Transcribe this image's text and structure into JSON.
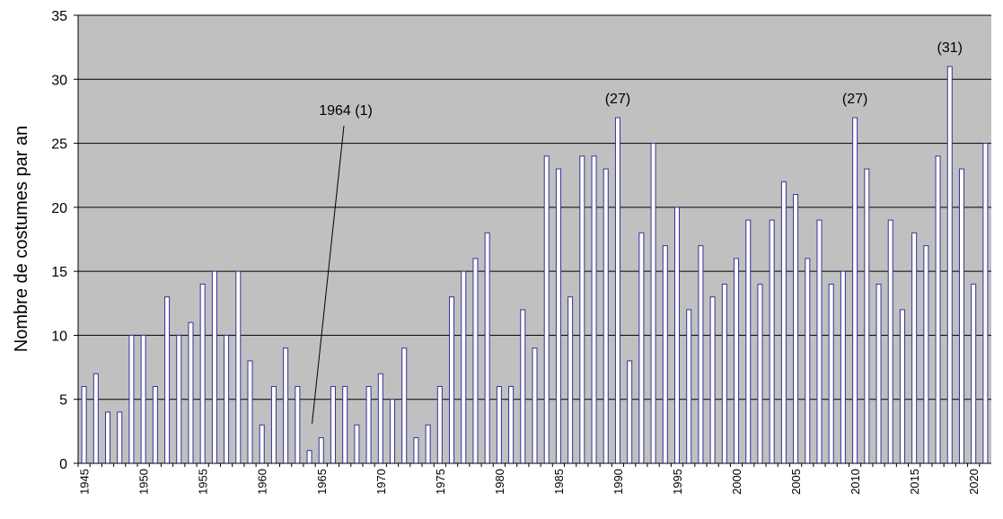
{
  "chart_data": {
    "type": "bar",
    "ylabel": "Nombre de costumes par an",
    "ylim": [
      0,
      35
    ],
    "yticks": [
      0,
      5,
      10,
      15,
      20,
      25,
      30,
      35
    ],
    "grid": true,
    "x": [
      1945,
      1946,
      1947,
      1948,
      1949,
      1950,
      1951,
      1952,
      1953,
      1954,
      1955,
      1956,
      1957,
      1958,
      1959,
      1960,
      1961,
      1962,
      1963,
      1964,
      1965,
      1966,
      1967,
      1968,
      1969,
      1970,
      1971,
      1972,
      1973,
      1974,
      1975,
      1976,
      1977,
      1978,
      1979,
      1980,
      1981,
      1982,
      1983,
      1984,
      1985,
      1986,
      1987,
      1988,
      1989,
      1990,
      1991,
      1992,
      1993,
      1994,
      1995,
      1996,
      1997,
      1998,
      1999,
      2000,
      2001,
      2002,
      2003,
      2004,
      2005,
      2006,
      2007,
      2008,
      2009,
      2010,
      2011,
      2012,
      2013,
      2014,
      2015,
      2016,
      2017,
      2018,
      2019,
      2020,
      2021
    ],
    "values": [
      6,
      7,
      4,
      4,
      10,
      10,
      6,
      13,
      10,
      11,
      14,
      15,
      10,
      15,
      8,
      3,
      6,
      9,
      6,
      1,
      2,
      6,
      6,
      3,
      6,
      7,
      5,
      9,
      2,
      3,
      6,
      13,
      15,
      16,
      18,
      6,
      6,
      12,
      9,
      24,
      23,
      13,
      24,
      24,
      23,
      27,
      8,
      18,
      25,
      17,
      20,
      12,
      17,
      13,
      14,
      16,
      19,
      14,
      19,
      22,
      21,
      16,
      19,
      14,
      15,
      27,
      23,
      14,
      19,
      12,
      18,
      17,
      24,
      31,
      23,
      14,
      25
    ],
    "xtick_labels": [
      "1945",
      "1950",
      "1955",
      "1960",
      "1965",
      "1970",
      "1975",
      "1980",
      "1985",
      "1990",
      "1995",
      "2000",
      "2005",
      "2010",
      "2015",
      "2020"
    ],
    "annotations": [
      {
        "year": 1964,
        "value": 1,
        "text": "1964 (1)"
      },
      {
        "year": 1990,
        "value": 27,
        "text": "(27)"
      },
      {
        "year": 2010,
        "value": 27,
        "text": "(27)"
      },
      {
        "year": 2018,
        "value": 31,
        "text": "(31)"
      }
    ],
    "colors": {
      "plot_bg": "#c0c0c0",
      "bar_fill": "#ffffff",
      "bar_stroke": "#333399",
      "grid": "#000000"
    }
  }
}
